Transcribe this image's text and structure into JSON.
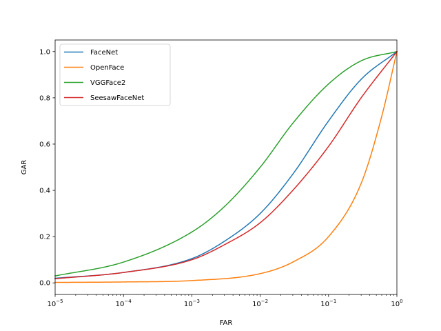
{
  "chart_data": {
    "type": "line",
    "xlabel": "FAR",
    "ylabel": "GAR",
    "xscale": "log",
    "xlim": [
      1e-05,
      1
    ],
    "ylim": [
      -0.05,
      1.05
    ],
    "grid": false,
    "legend_position": "top-left",
    "x_ticks": [
      {
        "value": 1e-05,
        "base": "10",
        "exp": "−5"
      },
      {
        "value": 0.0001,
        "base": "10",
        "exp": "−4"
      },
      {
        "value": 0.001,
        "base": "10",
        "exp": "−3"
      },
      {
        "value": 0.01,
        "base": "10",
        "exp": "−2"
      },
      {
        "value": 0.1,
        "base": "10",
        "exp": "−1"
      },
      {
        "value": 1,
        "base": "10",
        "exp": "0"
      }
    ],
    "y_ticks": [
      0.0,
      0.2,
      0.4,
      0.6,
      0.8,
      1.0
    ],
    "y_tick_labels": [
      "0.0",
      "0.2",
      "0.4",
      "0.6",
      "0.8",
      "1.0"
    ],
    "series": [
      {
        "name": "FaceNet",
        "color": "#1f77b4",
        "x": [
          1e-05,
          0.0001,
          0.001,
          0.003,
          0.01,
          0.03,
          0.1,
          0.3,
          1
        ],
        "y": [
          0.02,
          0.045,
          0.105,
          0.18,
          0.3,
          0.47,
          0.7,
          0.88,
          1.0
        ]
      },
      {
        "name": "OpenFace",
        "color": "#ff7f0e",
        "x": [
          1e-05,
          0.0001,
          0.001,
          0.01,
          0.03,
          0.1,
          0.3,
          0.6,
          1
        ],
        "y": [
          0.002,
          0.004,
          0.01,
          0.04,
          0.09,
          0.2,
          0.43,
          0.72,
          1.0
        ]
      },
      {
        "name": "VGGFace2",
        "color": "#2ca02c",
        "x": [
          1e-05,
          0.0001,
          0.001,
          0.003,
          0.01,
          0.03,
          0.1,
          0.3,
          1
        ],
        "y": [
          0.03,
          0.09,
          0.22,
          0.33,
          0.5,
          0.69,
          0.86,
          0.96,
          1.0
        ]
      },
      {
        "name": "SeesawFaceNet",
        "color": "#d62728",
        "x": [
          1e-05,
          0.0001,
          0.001,
          0.003,
          0.01,
          0.03,
          0.1,
          0.3,
          1
        ],
        "y": [
          0.018,
          0.045,
          0.1,
          0.165,
          0.26,
          0.4,
          0.59,
          0.8,
          1.0
        ]
      }
    ]
  }
}
